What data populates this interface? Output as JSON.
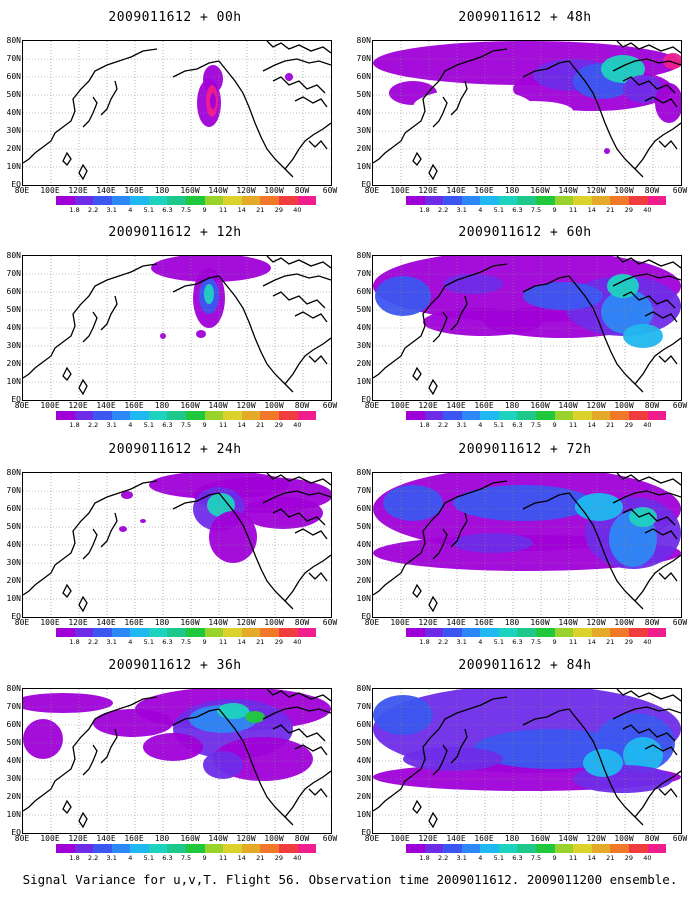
{
  "caption": "Signal Variance for u,v,T. Flight 56. Observation time 2009011612. 2009011200 ensemble.",
  "lat_labels": [
    "80N",
    "70N",
    "60N",
    "50N",
    "40N",
    "30N",
    "20N",
    "10N",
    "EQ"
  ],
  "lon_labels": [
    "80E",
    "100E",
    "120E",
    "140E",
    "160E",
    "180",
    "160W",
    "140W",
    "120W",
    "100W",
    "80W",
    "60W"
  ],
  "colorbar": {
    "labels": [
      "1.8",
      "2.2",
      "3.1",
      "4",
      "5.1",
      "6.3",
      "7.5",
      "9",
      "11",
      "14",
      "21",
      "29",
      "40"
    ],
    "colors": [
      "#a000d8",
      "#6e2ce8",
      "#3c56f0",
      "#2d88f5",
      "#1fb8f0",
      "#1ed2c0",
      "#1ec88a",
      "#22c83c",
      "#9ad22c",
      "#dcd22c",
      "#e6aa2a",
      "#f07828",
      "#f03c3c",
      "#f01e8c"
    ]
  },
  "panels": [
    {
      "title": "2009011612 + 00h",
      "level": 0
    },
    {
      "title": "2009011612 + 12h",
      "level": 1
    },
    {
      "title": "2009011612 + 24h",
      "level": 2
    },
    {
      "title": "2009011612 + 36h",
      "level": 3
    },
    {
      "title": "2009011612 + 48h",
      "level": 4
    },
    {
      "title": "2009011612 + 60h",
      "level": 5
    },
    {
      "title": "2009011612 + 72h",
      "level": 6
    },
    {
      "title": "2009011612 + 84h",
      "level": 7
    }
  ]
}
